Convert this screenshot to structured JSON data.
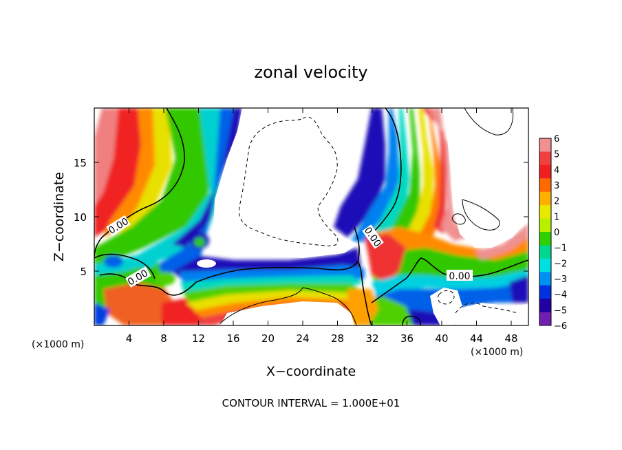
{
  "chart_data": {
    "type": "heatmap",
    "title": "zonal velocity",
    "xlabel": "X−coordinate",
    "ylabel": "Z−coordinate",
    "x_unit_label": "(×1000 m)",
    "z_unit_label": "(×1000 m)",
    "xlim": [
      0,
      50
    ],
    "ylim": [
      0,
      20
    ],
    "x_ticks": [
      "4",
      "8",
      "12",
      "16",
      "20",
      "24",
      "28",
      "32",
      "36",
      "40",
      "44",
      "48"
    ],
    "y_ticks": [
      "5",
      "10",
      "15"
    ],
    "colorbar": {
      "levels": [
        "6",
        "5",
        "4",
        "3",
        "2",
        "1",
        "0",
        "−1",
        "−2",
        "−3",
        "−4",
        "−5",
        "−6"
      ],
      "colors": [
        "#f09090",
        "#f04040",
        "#f02020",
        "#ff6a00",
        "#ffb000",
        "#e8e800",
        "#b8f000",
        "#30d000",
        "#00d890",
        "#00e0e0",
        "#0090f0",
        "#0030e0",
        "#2000a0",
        "#7020b0"
      ]
    },
    "contour_labels": [
      "0.00",
      "0.00",
      "0.00",
      "0.00"
    ],
    "footer": "CONTOUR INTERVAL = 1.000E+01"
  }
}
